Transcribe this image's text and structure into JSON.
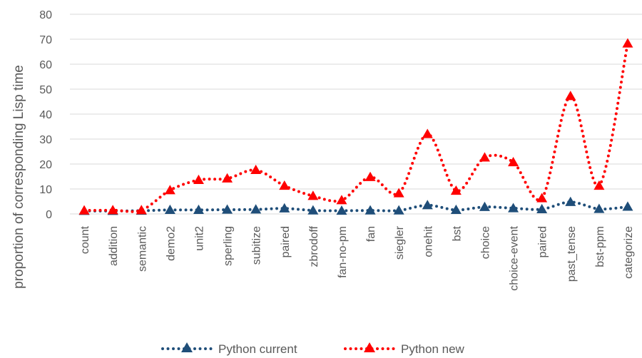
{
  "chart_data": {
    "type": "line",
    "title": "",
    "xlabel": "",
    "ylabel": "proportion of corresponding Lisp time",
    "ylim": [
      0,
      80
    ],
    "yticks": [
      0,
      10,
      20,
      30,
      40,
      50,
      60,
      70,
      80
    ],
    "grid": true,
    "legend_position": "bottom",
    "categories": [
      "count",
      "addition",
      "semantic",
      "demo2",
      "unit2",
      "sperling",
      "subitize",
      "paired",
      "zbrodoff",
      "fan-no-pm",
      "fan",
      "siegler",
      "onehit",
      "bst",
      "choice",
      "choice-event",
      "paired",
      "past_tense",
      "bst-ppm",
      "categorize"
    ],
    "series": [
      {
        "name": "Python current",
        "color": "#1f4e79",
        "marker": "triangle",
        "line": "dotted",
        "values": [
          1.2,
          1.2,
          1.3,
          1.6,
          1.6,
          1.7,
          1.8,
          2.2,
          1.4,
          1.3,
          1.4,
          1.4,
          3.5,
          1.6,
          2.8,
          2.3,
          1.9,
          4.8,
          2.0,
          2.9
        ]
      },
      {
        "name": "Python new",
        "color": "#ff0000",
        "marker": "triangle",
        "line": "dotted",
        "values": [
          1.4,
          1.5,
          1.5,
          9.5,
          13.6,
          14.2,
          17.6,
          11.3,
          7.2,
          5.5,
          14.8,
          8.3,
          32.0,
          9.3,
          22.6,
          20.7,
          6.3,
          47.2,
          11.3,
          68.3
        ]
      }
    ]
  }
}
